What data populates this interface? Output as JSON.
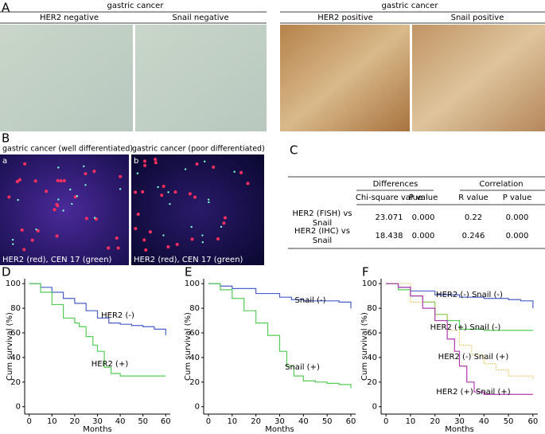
{
  "panel_a": {
    "label": "A",
    "groups": [
      {
        "title": "gastric cancer",
        "images": [
          "HER2 negative",
          "Snail negative"
        ]
      },
      {
        "title": "gastric cancer",
        "images": [
          "HER2 positive",
          "Snail positive"
        ]
      }
    ]
  },
  "panel_b": {
    "label": "B",
    "images": [
      {
        "title": "gastric cancer (well differentiated)",
        "tag": "a",
        "caption": "HER2 (red), CEN 17 (green)"
      },
      {
        "title": "gastric cancer (poor differentiated)",
        "tag": "b",
        "caption": "HER2 (red), CEN 17 (green)"
      }
    ]
  },
  "panel_c": {
    "label": "C",
    "groups": [
      "Differences",
      "Correlation"
    ],
    "columns": [
      "Chi-square value",
      "P value",
      "R value",
      "P value"
    ],
    "rows": [
      {
        "label": [
          "HER2 (FISH) vs",
          "Snail"
        ],
        "cells": [
          "23.071",
          "0.000",
          "0.22",
          "0.000"
        ]
      },
      {
        "label": [
          "HER2 (IHC) vs",
          "Snail"
        ],
        "cells": [
          "18.438",
          "0.000",
          "0.246",
          "0.000"
        ]
      }
    ]
  },
  "chart_data": [
    {
      "type": "line",
      "step": true,
      "panel": "D",
      "x_label": "Months",
      "y_label": "Cum survival (%)",
      "xlim": [
        -2,
        62
      ],
      "ylim": [
        -6,
        104
      ],
      "xticks": [
        0,
        10,
        20,
        30,
        40,
        50,
        60
      ],
      "yticks": [
        0,
        20,
        40,
        60,
        80,
        100
      ],
      "series": [
        {
          "name": "HER2 (-)",
          "color": "#4a5fc8",
          "x": [
            0,
            5,
            10,
            15,
            20,
            25,
            30,
            35,
            40,
            45,
            50,
            55,
            60
          ],
          "values": [
            100,
            97,
            93,
            88,
            84,
            78,
            72,
            68,
            67,
            66,
            65,
            63,
            58
          ]
        },
        {
          "name": "HER2 (+)",
          "color": "#55cc55",
          "x": [
            0,
            5,
            10,
            15,
            20,
            22,
            25,
            28,
            30,
            33,
            36,
            40,
            45,
            50,
            60
          ],
          "values": [
            100,
            93,
            83,
            72,
            68,
            65,
            57,
            50,
            45,
            32,
            27,
            25,
            25,
            25,
            25
          ]
        }
      ]
    },
    {
      "type": "line",
      "step": true,
      "panel": "E",
      "x_label": "Months",
      "y_label": "Cum survival (%)",
      "xlim": [
        -2,
        62
      ],
      "ylim": [
        -6,
        104
      ],
      "xticks": [
        0,
        10,
        20,
        30,
        40,
        50,
        60
      ],
      "yticks": [
        0,
        20,
        40,
        60,
        80,
        100
      ],
      "series": [
        {
          "name": "Snail (-)",
          "color": "#4a5fc8",
          "x": [
            0,
            5,
            10,
            20,
            30,
            35,
            40,
            50,
            55,
            60
          ],
          "values": [
            100,
            98,
            96,
            92,
            89,
            87,
            86,
            86,
            85,
            80
          ]
        },
        {
          "name": "Snail (+)",
          "color": "#55cc55",
          "x": [
            0,
            5,
            10,
            15,
            20,
            25,
            30,
            33,
            36,
            40,
            45,
            50,
            55,
            60
          ],
          "values": [
            100,
            95,
            88,
            78,
            68,
            58,
            45,
            33,
            25,
            21,
            20,
            19,
            18,
            15
          ]
        }
      ]
    },
    {
      "type": "line",
      "step": true,
      "panel": "F",
      "x_label": "Months",
      "y_label": "Cum survival (%)",
      "xlim": [
        -2,
        62
      ],
      "ylim": [
        -6,
        104
      ],
      "xticks": [
        0,
        10,
        20,
        30,
        40,
        50,
        60
      ],
      "yticks": [
        0,
        20,
        40,
        60,
        80,
        100
      ],
      "series": [
        {
          "name": "HER2 (-) Snail (-)",
          "color": "#4a5fc8",
          "x": [
            0,
            5,
            10,
            20,
            30,
            40,
            50,
            55,
            60
          ],
          "values": [
            100,
            97,
            94,
            91,
            89,
            88,
            87,
            86,
            80
          ]
        },
        {
          "name": "HER2 (+) Snail (-)",
          "color": "#55cc55",
          "x": [
            0,
            5,
            10,
            15,
            20,
            25,
            30,
            40,
            60
          ],
          "values": [
            100,
            95,
            90,
            85,
            75,
            70,
            63,
            62,
            62
          ]
        },
        {
          "name": "HER2 (-) Snail (+)",
          "color": "#e6c35a",
          "dash": "dotted",
          "x": [
            0,
            10,
            20,
            25,
            30,
            35,
            40,
            45,
            50,
            60
          ],
          "values": [
            100,
            85,
            75,
            62,
            50,
            42,
            35,
            30,
            25,
            22
          ]
        },
        {
          "name": "HER2 (+) Snail (+)",
          "color": "#b03ab0",
          "x": [
            0,
            5,
            10,
            15,
            20,
            25,
            28,
            30,
            33,
            36,
            40,
            60
          ],
          "values": [
            100,
            97,
            90,
            80,
            70,
            55,
            45,
            33,
            20,
            12,
            10,
            10
          ]
        }
      ]
    }
  ]
}
